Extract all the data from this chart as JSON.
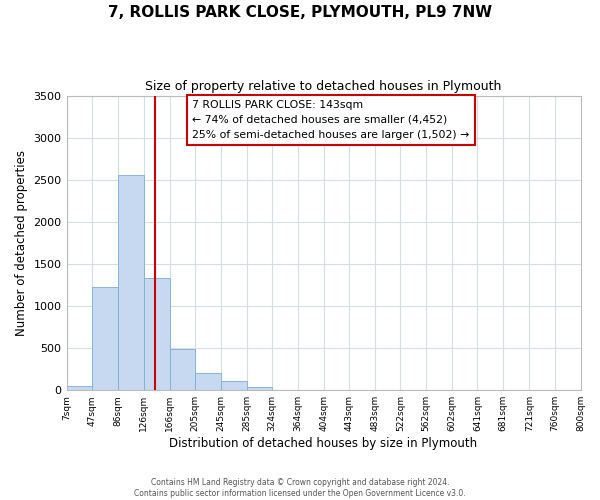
{
  "title": "7, ROLLIS PARK CLOSE, PLYMOUTH, PL9 7NW",
  "subtitle": "Size of property relative to detached houses in Plymouth",
  "xlabel": "Distribution of detached houses by size in Plymouth",
  "ylabel": "Number of detached properties",
  "bar_edges": [
    7,
    47,
    86,
    126,
    166,
    205,
    245,
    285,
    324,
    364,
    404,
    443,
    483,
    522,
    562,
    602,
    641,
    681,
    721,
    760,
    800
  ],
  "bar_heights": [
    50,
    1225,
    2560,
    1330,
    490,
    200,
    110,
    40,
    5,
    2,
    1,
    0,
    0,
    0,
    0,
    0,
    0,
    0,
    0,
    0
  ],
  "tick_labels": [
    "7sqm",
    "47sqm",
    "86sqm",
    "126sqm",
    "166sqm",
    "205sqm",
    "245sqm",
    "285sqm",
    "324sqm",
    "364sqm",
    "404sqm",
    "443sqm",
    "483sqm",
    "522sqm",
    "562sqm",
    "602sqm",
    "641sqm",
    "681sqm",
    "721sqm",
    "760sqm",
    "800sqm"
  ],
  "bar_color": "#c6d9f0",
  "bar_edge_color": "#7aafd4",
  "vline_x": 143,
  "vline_color": "#cc0000",
  "ylim": [
    0,
    3500
  ],
  "yticks": [
    0,
    500,
    1000,
    1500,
    2000,
    2500,
    3000,
    3500
  ],
  "annotation_title": "7 ROLLIS PARK CLOSE: 143sqm",
  "annotation_line1": "← 74% of detached houses are smaller (4,452)",
  "annotation_line2": "25% of semi-detached houses are larger (1,502) →",
  "annotation_box_color": "#ffffff",
  "annotation_box_edge": "#cc0000",
  "footer1": "Contains HM Land Registry data © Crown copyright and database right 2024.",
  "footer2": "Contains public sector information licensed under the Open Government Licence v3.0.",
  "bg_color": "#ffffff",
  "grid_color": "#d4dde8"
}
